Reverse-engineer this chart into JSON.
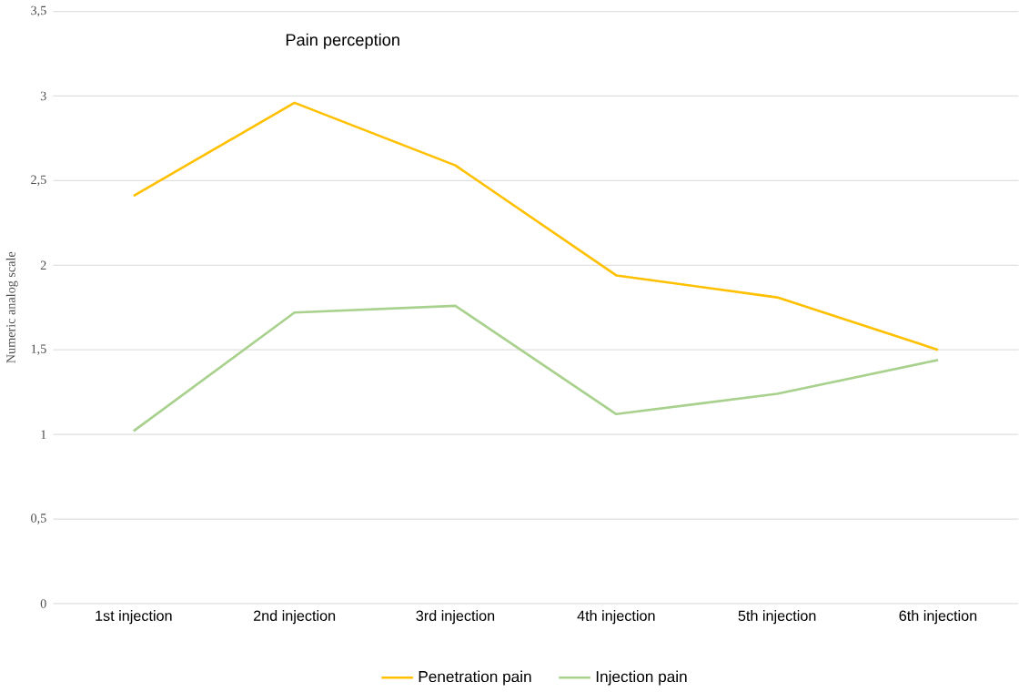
{
  "chart_data": {
    "type": "line",
    "title": "Pain perception",
    "ylabel": "Numeric analog scale",
    "categories": [
      "1st injection",
      "2nd injection",
      "3rd injection",
      "4th injection",
      "5th injection",
      "6th injection"
    ],
    "series": [
      {
        "name": "Penetration pain",
        "color": "#ffc000",
        "values": [
          2.41,
          2.96,
          2.59,
          1.94,
          1.81,
          1.5
        ]
      },
      {
        "name": "Injection pain",
        "color": "#a9d18e",
        "values": [
          1.02,
          1.72,
          1.76,
          1.12,
          1.24,
          1.44
        ]
      }
    ],
    "ylim": [
      0,
      3.5
    ],
    "yticks": [
      0,
      {
        "value": 0.5,
        "label": "0,5"
      },
      1,
      {
        "value": 1.5,
        "label": "1,5"
      },
      2,
      {
        "value": 2.5,
        "label": "2,5"
      },
      3,
      {
        "value": 3.5,
        "label": "3,5"
      }
    ],
    "grid": "y",
    "legend": "bottom",
    "marker": "none",
    "line_style": "solid"
  }
}
